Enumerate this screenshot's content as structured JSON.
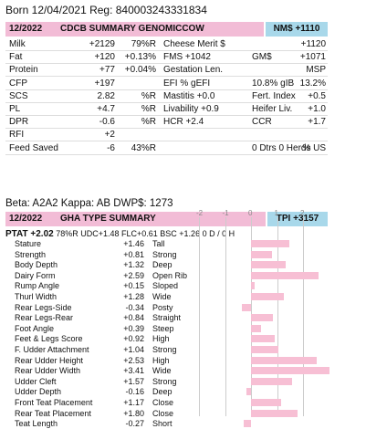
{
  "born_line": "Born 12/04/2021 Reg: 840003243331834",
  "cdcb": {
    "date": "12/2022",
    "title": "CDCB SUMMARY GENOMICCOW",
    "nm": "NM$ +1110",
    "rows": [
      [
        "Milk",
        "+2129",
        "79%R",
        "Cheese Merit $",
        "",
        "+1120"
      ],
      [
        "Fat",
        "+120",
        "+0.13%",
        "FMS +1042",
        "GM$",
        "+1071"
      ],
      [
        "Protein",
        "+77",
        "+0.04%",
        "Gestation Len.",
        "",
        "MSP"
      ],
      [
        "CFP",
        "+197",
        "",
        "EFI % gEFI",
        "10.8% gIB",
        "13.2%"
      ],
      [
        "SCS",
        "2.82",
        "%R",
        "Mastitis +0.0",
        "Fert. Index",
        "+0.5"
      ],
      [
        "PL",
        "+4.7",
        "%R",
        "Livability +0.9",
        "Heifer Liv.",
        "+1.0"
      ],
      [
        "DPR",
        "-0.6",
        "%R",
        "HCR +2.4",
        "CCR",
        "+1.7"
      ],
      [
        "RFI",
        "+2",
        "",
        "",
        "",
        ""
      ],
      [
        "Feed Saved",
        "-6",
        "43%R",
        "",
        "0 Dtrs 0 Herds",
        "% US"
      ]
    ]
  },
  "genetics_line": "Beta: A2A2  Kappa: AB  DWP$: 1273",
  "gha": {
    "date": "12/2022",
    "title": "GHA TYPE SUMMARY",
    "tpi": "TPI +3157",
    "ptat_label": "PTAT +2.02",
    "ptat_rest": "78%R  UDC+1.48  FLC+0.61  BSC +1.26  0 D  / 0 H",
    "axis_ticks": [
      "-2",
      "-1",
      "0",
      "1",
      "2"
    ],
    "traits": [
      {
        "name": "Stature",
        "value": "+1.46",
        "desc": "Tall",
        "v": 1.46
      },
      {
        "name": "Strength",
        "value": "+0.81",
        "desc": "Strong",
        "v": 0.81
      },
      {
        "name": "Body Depth",
        "value": "+1.32",
        "desc": "Deep",
        "v": 1.32
      },
      {
        "name": "Dairy Form",
        "value": "+2.59",
        "desc": "Open Rib",
        "v": 2.59
      },
      {
        "name": "Rump Angle",
        "value": "+0.15",
        "desc": "Sloped",
        "v": 0.15
      },
      {
        "name": "Thurl Width",
        "value": "+1.28",
        "desc": "Wide",
        "v": 1.28
      },
      {
        "name": "Rear Legs-Side",
        "value": "-0.34",
        "desc": "Posty",
        "v": -0.34
      },
      {
        "name": "Rear Legs-Rear",
        "value": "+0.84",
        "desc": "Straight",
        "v": 0.84
      },
      {
        "name": "Foot Angle",
        "value": "+0.39",
        "desc": "Steep",
        "v": 0.39
      },
      {
        "name": "Feet & Legs Score",
        "value": "+0.92",
        "desc": "High",
        "v": 0.92
      },
      {
        "name": "F. Udder Attachment",
        "value": "+1.04",
        "desc": "Strong",
        "v": 1.04
      },
      {
        "name": "Rear Udder Height",
        "value": "+2.53",
        "desc": "High",
        "v": 2.53
      },
      {
        "name": "Rear Udder Width",
        "value": "+3.41",
        "desc": "Wide",
        "v": 3.41
      },
      {
        "name": "Udder Cleft",
        "value": "+1.57",
        "desc": "Strong",
        "v": 1.57
      },
      {
        "name": "Udder Depth",
        "value": "-0.16",
        "desc": "Deep",
        "v": -0.16
      },
      {
        "name": "Front Teat Placement",
        "value": "+1.17",
        "desc": "Close",
        "v": 1.17
      },
      {
        "name": "Rear Teat Placement",
        "value": "+1.80",
        "desc": "Close",
        "v": 1.8
      },
      {
        "name": "Teat Length",
        "value": "-0.27",
        "desc": "Short",
        "v": -0.27
      }
    ]
  }
}
